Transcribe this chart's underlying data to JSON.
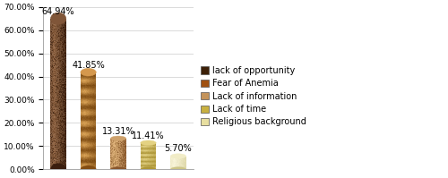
{
  "categories": [
    "lack of opportunity",
    "Fear of Anemia",
    "Lack of information",
    "Lack of time",
    "Religious background"
  ],
  "values": [
    64.94,
    41.85,
    13.31,
    11.41,
    5.7
  ],
  "labels": [
    "64.94%",
    "41.85%",
    "13.31%",
    "11.41%",
    "5.70%"
  ],
  "ylim": [
    0,
    70
  ],
  "yticks": [
    0,
    10,
    20,
    30,
    40,
    50,
    60,
    70
  ],
  "ytick_labels": [
    "0.00%",
    "10.00%",
    "20.00%",
    "30.00%",
    "40.00%",
    "50.00%",
    "60.00%",
    "70.00%"
  ],
  "bar_params": [
    {
      "base": "#5a3020",
      "dark": "#2e1608",
      "light": "#8a6040",
      "mid": "#6a4028",
      "type": "mottled"
    },
    {
      "base": "#c07830",
      "dark": "#7a4810",
      "light": "#e8b060",
      "mid": "#a86020",
      "type": "striped"
    },
    {
      "base": "#b88050",
      "dark": "#7a4820",
      "light": "#d4a870",
      "mid": "#c09060",
      "type": "cork"
    },
    {
      "base": "#d4c060",
      "dark": "#a89030",
      "light": "#f0e098",
      "mid": "#c8b050",
      "type": "ringed"
    },
    {
      "base": "#e8e0b0",
      "dark": "#c8c080",
      "light": "#f8f4d8",
      "mid": "#e0d8a0",
      "type": "smooth"
    }
  ],
  "legend_labels": [
    "lack of opportunity",
    "Fear of Anemia",
    "Lack of information",
    "Lack of time",
    "Religious background"
  ],
  "legend_colors": [
    "#3d2008",
    "#a05010",
    "#c4935a",
    "#c8b040",
    "#e8dfa0"
  ],
  "background_color": "#ffffff",
  "grid_color": "#cccccc",
  "label_fontsize": 7,
  "tick_fontsize": 6.5,
  "legend_fontsize": 7,
  "bar_width": 0.52,
  "xlim": [
    -0.5,
    4.5
  ]
}
